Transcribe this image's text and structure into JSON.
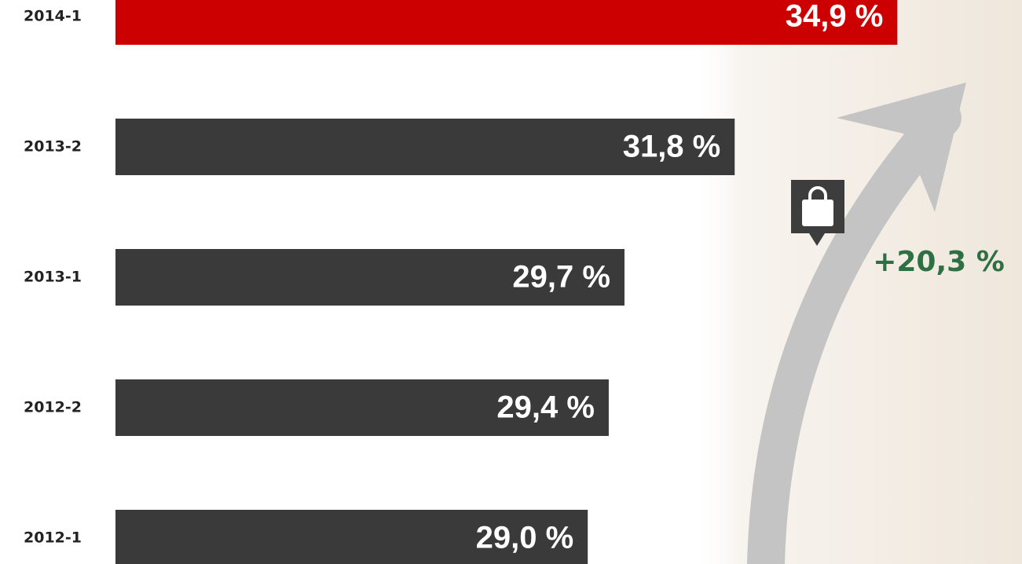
{
  "chart_data": {
    "type": "bar",
    "categories": [
      "2014-1",
      "2013-2",
      "2013-1",
      "2012-2",
      "2012-1"
    ],
    "values": [
      34.9,
      31.8,
      29.7,
      29.4,
      29.0
    ],
    "value_labels": [
      "34,9 %",
      "31,8 %",
      "29,7 %",
      "29,4 %",
      "29,0 %"
    ],
    "colors": [
      "#cc0000",
      "#3a3a3a",
      "#3a3a3a",
      "#3a3a3a",
      "#3a3a3a"
    ],
    "xlim": [
      20,
      35
    ],
    "annotation": "+20,3 %"
  }
}
